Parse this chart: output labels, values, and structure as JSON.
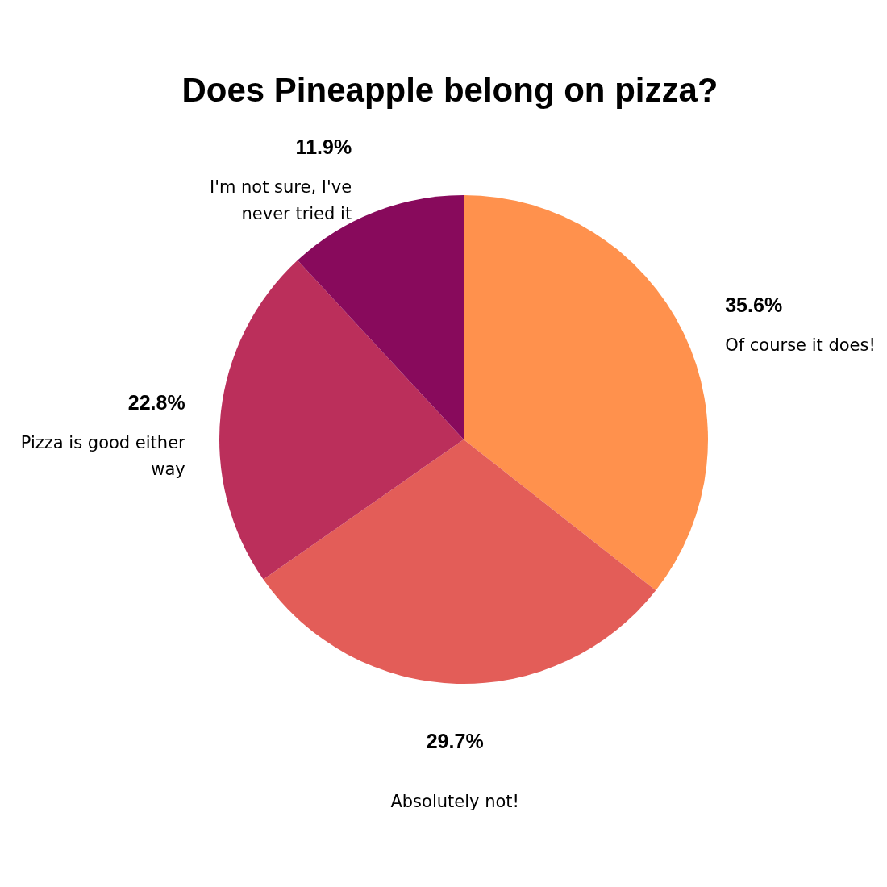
{
  "chart_data": {
    "type": "pie",
    "title": "Does Pineapple belong on pizza?",
    "categories": [
      "Of course it does!",
      "Absolutely not!",
      "Pizza is good either way",
      "I'm not sure, I've never tried it"
    ],
    "values": [
      35.6,
      29.7,
      22.8,
      11.9
    ],
    "colors": [
      "#ff914d",
      "#e35d58",
      "#bb2f5b",
      "#880a5c"
    ],
    "value_labels": [
      "35.6%",
      "29.7%",
      "22.8%",
      "11.9%"
    ]
  }
}
